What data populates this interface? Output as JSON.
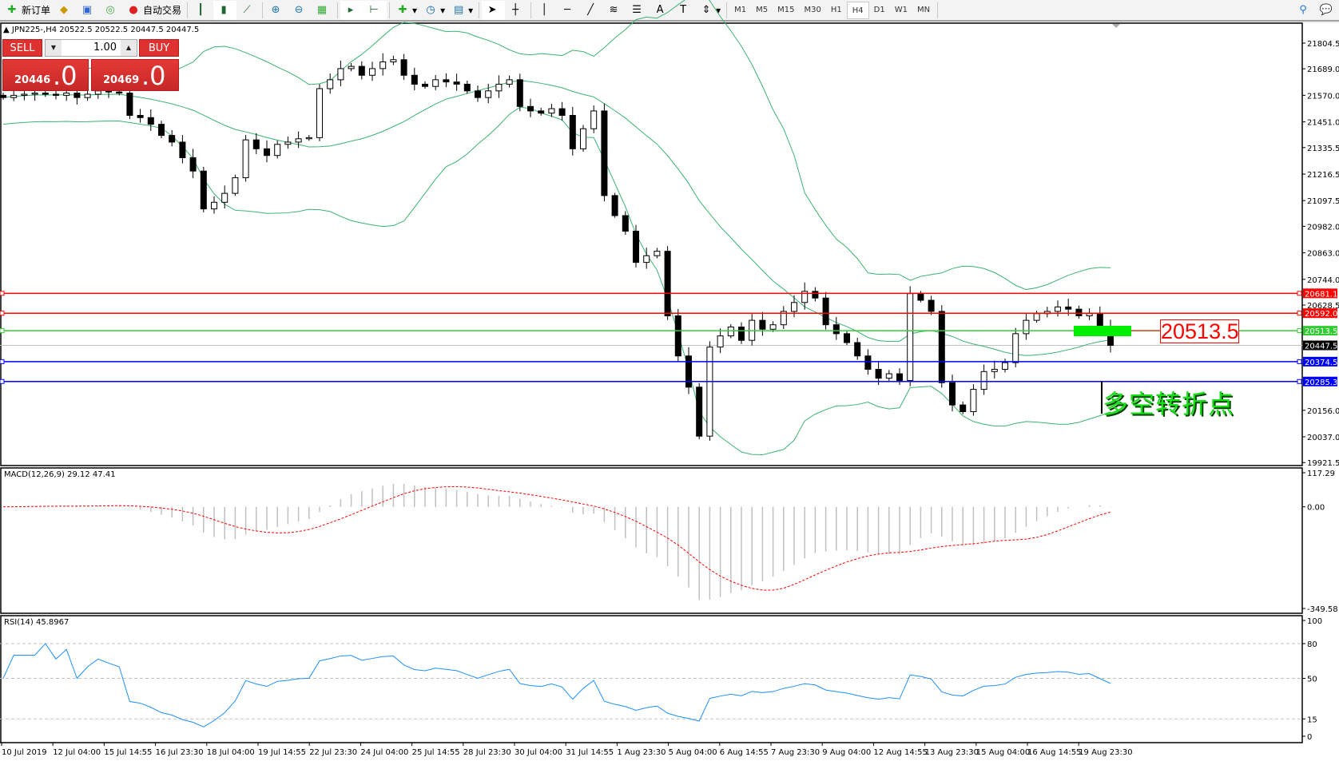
{
  "toolbar": {
    "new_order": "新订单",
    "auto_trading": "自动交易",
    "timeframes": [
      "M1",
      "M5",
      "M15",
      "M30",
      "H1",
      "H4",
      "D1",
      "W1",
      "MN"
    ],
    "active_timeframe": "H4",
    "icons": [
      "bar-chart-icon",
      "candlestick-icon",
      "line-chart-icon",
      "zoom-in-icon",
      "zoom-out-icon",
      "tile-windows-icon",
      "auto-scroll-icon",
      "chart-shift-icon",
      "indicators-icon",
      "periods-icon",
      "templates-icon",
      "cursor-icon",
      "crosshair-icon",
      "vertical-line-icon",
      "horizontal-line-icon",
      "trendline-icon",
      "fibonacci-icon",
      "text-icon",
      "text-label-icon",
      "arrows-icon",
      "search-icon",
      "chat-icon"
    ]
  },
  "chart": {
    "header": "JPN225-,H4  20522.5 20522.5 20447.5 20447.5",
    "symbol": "JPN225-",
    "timeframe": "H4",
    "colors": {
      "up": "#ffffff",
      "down": "#000000",
      "bands": "#3cb371",
      "rsi": "#1e90ff",
      "macd_signal": "#ff0000",
      "macd_hist": "#c0c0c0"
    },
    "price_ticks": [
      "21804.5",
      "21689.0",
      "21570.0",
      "21451.0",
      "21335.5",
      "21216.5",
      "21097.5",
      "20982.0",
      "20863.0",
      "20744.0",
      "20628.5",
      "20156.0",
      "20037.0",
      "19921.5"
    ],
    "price_range": [
      19908,
      21894
    ],
    "levels": [
      {
        "price": 20681.1,
        "label": "20681.1",
        "color": "#ff0000"
      },
      {
        "price": 20592.0,
        "label": "20592.0",
        "color": "#ff0000"
      },
      {
        "price": 20513.5,
        "label": "20513.5",
        "color": "#32cd32"
      },
      {
        "price": 20374.5,
        "label": "20374.5",
        "color": "#0000ff"
      },
      {
        "price": 20285.3,
        "label": "20285.3",
        "color": "#0000ff"
      }
    ],
    "current_price": {
      "price": 20447.5,
      "label": "20447.5"
    },
    "closes": [
      21560,
      21570,
      21575,
      21580,
      21575,
      21570,
      21580,
      21560,
      21575,
      21590,
      21585,
      21580,
      21480,
      21470,
      21440,
      21390,
      21360,
      21290,
      21230,
      21060,
      21090,
      21130,
      21200,
      21370,
      21330,
      21300,
      21350,
      21360,
      21375,
      21380,
      21600,
      21640,
      21690,
      21700,
      21660,
      21690,
      21720,
      21730,
      21660,
      21620,
      21610,
      21640,
      21630,
      21620,
      21590,
      21560,
      21590,
      21620,
      21640,
      21520,
      21500,
      21490,
      21510,
      21480,
      21330,
      21420,
      21500,
      21120,
      21030,
      20960,
      20820,
      20850,
      20870,
      20580,
      20400,
      20260,
      20040,
      20440,
      20490,
      20530,
      20470,
      20560,
      20520,
      20540,
      20600,
      20640,
      20690,
      20660,
      20540,
      20500,
      20460,
      20400,
      20340,
      20300,
      20320,
      20290,
      20680,
      20650,
      20600,
      20280,
      20180,
      20150,
      20250,
      20330,
      20340,
      20370,
      20500,
      20560,
      20590,
      20600,
      20620,
      20610,
      20580,
      20590,
      20522.5,
      20447.5
    ],
    "annotation_price_label": "20513.5",
    "annotation_text": "多空转折点"
  },
  "trade_panel": {
    "sell_label": "SELL",
    "buy_label": "BUY",
    "lot": "1.00",
    "sell_price_main": "20446",
    "sell_price_big": ".0",
    "buy_price_main": "20469",
    "buy_price_big": ".0"
  },
  "macd": {
    "label": "MACD(12,26,9) 29.12 47.41",
    "ticks": [
      "117.29",
      "0.00",
      "-349.58"
    ],
    "range": [
      -349.58,
      117.29
    ]
  },
  "rsi": {
    "label": "RSI(14) 45.8967",
    "ticks": [
      "100",
      "80",
      "50",
      "15",
      "0"
    ],
    "levels": [
      80,
      50,
      15
    ]
  },
  "time_axis": [
    "10 Jul 2019",
    "12 Jul 04:00",
    "15 Jul 14:55",
    "16 Jul 23:30",
    "18 Jul 04:00",
    "19 Jul 14:55",
    "22 Jul 23:30",
    "24 Jul 04:00",
    "25 Jul 14:55",
    "28 Jul 23:30",
    "30 Jul 04:00",
    "31 Jul 14:55",
    "1 Aug 23:30",
    "5 Aug 04:00",
    "6 Aug 14:55",
    "7 Aug 23:30",
    "9 Aug 04:00",
    "12 Aug 14:55",
    "13 Aug 23:30",
    "15 Aug 04:00",
    "16 Aug 14:55",
    "19 Aug 23:30"
  ]
}
